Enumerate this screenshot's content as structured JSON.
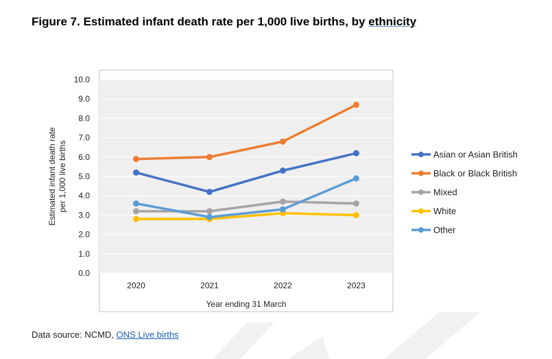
{
  "figure": {
    "title_prefix": "Figure 7. Estimated infant death rate per 1,000 live births, by ",
    "title_link": "ethnicity"
  },
  "source": {
    "prefix": "Data source: NCMD, ",
    "link": "ONS Live births"
  },
  "chart_data": {
    "type": "line",
    "x": [
      "2020",
      "2021",
      "2022",
      "2023"
    ],
    "xlabel": "Year ending 31 March",
    "ylabel_lines": [
      "Estimated infant death rate",
      "per 1,000 live births"
    ],
    "ylim": [
      0,
      10
    ],
    "yticks": [
      "0.0",
      "1.0",
      "2.0",
      "3.0",
      "4.0",
      "5.0",
      "6.0",
      "7.0",
      "8.0",
      "9.0",
      "10.0"
    ],
    "grid": true,
    "legend_position": "right",
    "series": [
      {
        "name": "Asian or Asian British",
        "color": "#4472c4",
        "values": [
          5.2,
          4.2,
          5.3,
          6.2
        ]
      },
      {
        "name": "Black or Black British",
        "color": "#ed7d31",
        "values": [
          5.9,
          6.0,
          6.8,
          8.7
        ]
      },
      {
        "name": "Mixed",
        "color": "#a5a5a5",
        "values": [
          3.2,
          3.2,
          3.7,
          3.6
        ]
      },
      {
        "name": "White",
        "color": "#ffc000",
        "values": [
          2.8,
          2.8,
          3.1,
          3.0
        ]
      },
      {
        "name": "Other",
        "color": "#5b9bd5",
        "values": [
          3.6,
          2.9,
          3.3,
          4.9
        ]
      }
    ]
  }
}
